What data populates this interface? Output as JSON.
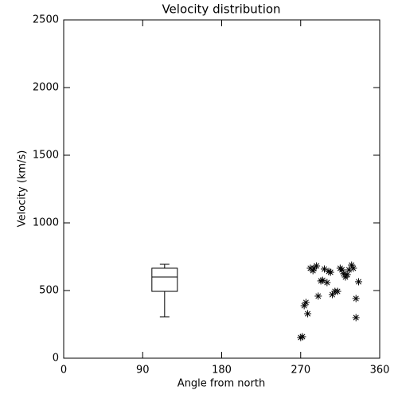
{
  "chart_data": {
    "type": "scatter",
    "title": "Velocity distribution",
    "x_label": "Angle from north",
    "y_label": "Velocity (km/s)",
    "xlim": [
      0,
      360
    ],
    "xticks": [
      0,
      90,
      180,
      270,
      360
    ],
    "ylim": [
      0,
      2500
    ],
    "yticks": [
      0,
      500,
      1000,
      1500,
      2000,
      2500
    ],
    "color": "#000000",
    "x": [
      270,
      272,
      274,
      276,
      278,
      281,
      284,
      285,
      288,
      290,
      293,
      295,
      297,
      300,
      302,
      304,
      306,
      309,
      312,
      315,
      317,
      319,
      321,
      323,
      325,
      328,
      330,
      333,
      333,
      336
    ],
    "values": [
      153,
      159,
      388,
      412,
      329,
      665,
      647,
      665,
      682,
      459,
      571,
      576,
      659,
      559,
      641,
      635,
      470,
      494,
      494,
      665,
      653,
      624,
      600,
      618,
      653,
      688,
      665,
      300,
      441,
      565
    ],
    "box": {
      "x": 115,
      "min": 306,
      "q1": 494,
      "median": 600,
      "q3": 665,
      "max": 694
    }
  }
}
